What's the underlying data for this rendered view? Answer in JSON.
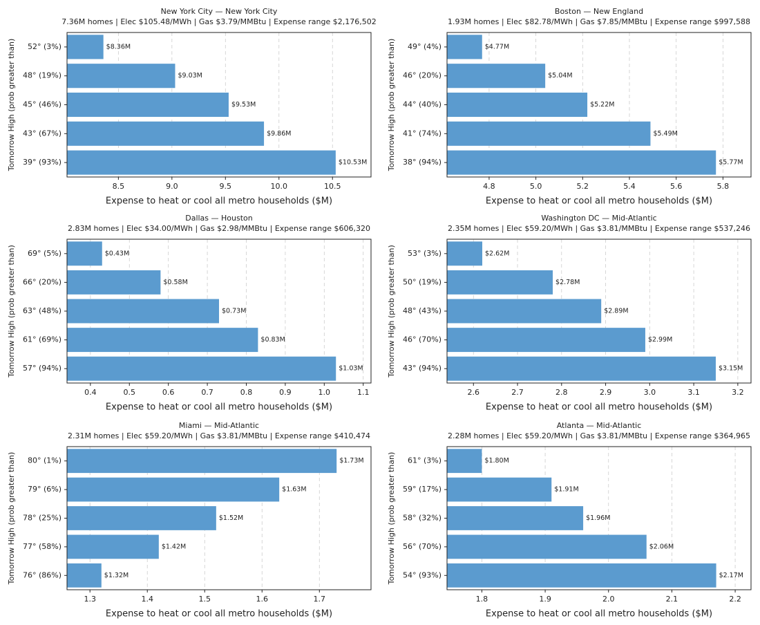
{
  "chart_data": [
    {
      "type": "bar",
      "orientation": "horizontal",
      "title": "New York City — New York City",
      "subtitle": "7.36M homes | Elec $105.48/MWh | Gas $3.79/MMBtu | Expense range $2,176,502",
      "categories": [
        "52° (3%)",
        "48° (19%)",
        "45° (46%)",
        "43° (67%)",
        "39° (93%)"
      ],
      "values": [
        8.36,
        9.03,
        9.53,
        9.86,
        10.53
      ],
      "value_labels": [
        "$8.36M",
        "$9.03M",
        "$9.53M",
        "$9.86M",
        "$10.53M"
      ],
      "xlim": [
        8.02,
        10.86
      ],
      "xticks": [
        8.5,
        {
          "value": 9.0,
          "label": "9.0"
        },
        9.5,
        {
          "value": 10.0,
          "label": "10.0"
        },
        10.5
      ],
      "xlabel": "Expense to heat or cool all metro households ($M)",
      "ylabel": "Tomorrow High (prob greater than)",
      "color": "#5b9bcf",
      "grid": true
    },
    {
      "type": "bar",
      "orientation": "horizontal",
      "title": "Boston — New England",
      "subtitle": "1.93M homes | Elec $82.78/MWh | Gas $7.85/MMBtu | Expense range $997,588",
      "categories": [
        "49° (4%)",
        "46° (20%)",
        "44° (40%)",
        "41° (74%)",
        "38° (94%)"
      ],
      "values": [
        4.77,
        5.04,
        5.22,
        5.49,
        5.77
      ],
      "value_labels": [
        "$4.77M",
        "$5.04M",
        "$5.22M",
        "$5.49M",
        "$5.77M"
      ],
      "xlim": [
        4.62,
        5.92
      ],
      "xticks": [
        4.8,
        {
          "value": 5.0,
          "label": "5.0"
        },
        5.2,
        5.4,
        5.6,
        5.8
      ],
      "xlabel": "Expense to heat or cool all metro households ($M)",
      "ylabel": "Tomorrow High (prob greater than)",
      "color": "#5b9bcf",
      "grid": true
    },
    {
      "type": "bar",
      "orientation": "horizontal",
      "title": "Dallas — Houston",
      "subtitle": "2.83M homes | Elec $34.00/MWh | Gas $2.98/MMBtu | Expense range $606,320",
      "categories": [
        "69° (5%)",
        "66° (20%)",
        "63° (48%)",
        "61° (69%)",
        "57° (94%)"
      ],
      "values": [
        0.43,
        0.58,
        0.73,
        0.83,
        1.03
      ],
      "value_labels": [
        "$0.43M",
        "$0.58M",
        "$0.73M",
        "$0.83M",
        "$1.03M"
      ],
      "xlim": [
        0.34,
        1.12
      ],
      "xticks": [
        0.4,
        0.5,
        0.6,
        0.7,
        0.8,
        0.9,
        {
          "value": 1.0,
          "label": "1.0"
        },
        1.1
      ],
      "xlabel": "Expense to heat or cool all metro households ($M)",
      "ylabel": "Tomorrow High (prob greater than)",
      "color": "#5b9bcf",
      "grid": true
    },
    {
      "type": "bar",
      "orientation": "horizontal",
      "title": "Washington DC — Mid-Atlantic",
      "subtitle": "2.35M homes | Elec $59.20/MWh | Gas $3.81/MMBtu | Expense range $537,246",
      "categories": [
        "53° (3%)",
        "50° (19%)",
        "48° (43%)",
        "46° (70%)",
        "43° (94%)"
      ],
      "values": [
        2.62,
        2.78,
        2.89,
        2.99,
        3.15
      ],
      "value_labels": [
        "$2.62M",
        "$2.78M",
        "$2.89M",
        "$2.99M",
        "$3.15M"
      ],
      "xlim": [
        2.54,
        3.23
      ],
      "xticks": [
        2.6,
        2.7,
        2.8,
        2.9,
        {
          "value": 3.0,
          "label": "3.0"
        },
        3.1,
        3.2
      ],
      "xlabel": "Expense to heat or cool all metro households ($M)",
      "ylabel": "Tomorrow High (prob greater than)",
      "color": "#5b9bcf",
      "grid": true
    },
    {
      "type": "bar",
      "orientation": "horizontal",
      "title": "Miami — Mid-Atlantic",
      "subtitle": "2.31M homes | Elec $59.20/MWh | Gas $3.81/MMBtu | Expense range $410,474",
      "categories": [
        "80° (1%)",
        "79° (6%)",
        "78° (25%)",
        "77° (58%)",
        "76° (86%)"
      ],
      "values": [
        1.73,
        1.63,
        1.52,
        1.42,
        1.32
      ],
      "value_labels": [
        "$1.73M",
        "$1.63M",
        "$1.52M",
        "$1.42M",
        "$1.32M"
      ],
      "xlim": [
        1.26,
        1.79
      ],
      "xticks": [
        1.3,
        1.4,
        1.5,
        1.6,
        1.7
      ],
      "xlabel": "Expense to heat or cool all metro households ($M)",
      "ylabel": "Tomorrow High (prob greater than)",
      "color": "#5b9bcf",
      "grid": true
    },
    {
      "type": "bar",
      "orientation": "horizontal",
      "title": "Atlanta — Mid-Atlantic",
      "subtitle": "2.28M homes | Elec $59.20/MWh | Gas $3.81/MMBtu | Expense range $364,965",
      "categories": [
        "61° (3%)",
        "59° (17%)",
        "58° (32%)",
        "56° (70%)",
        "54° (93%)"
      ],
      "values": [
        1.8,
        1.91,
        1.96,
        2.06,
        2.17
      ],
      "value_labels": [
        "$1.80M",
        "$1.91M",
        "$1.96M",
        "$2.06M",
        "$2.17M"
      ],
      "xlim": [
        1.745,
        2.225
      ],
      "xticks": [
        1.8,
        1.9,
        {
          "value": 2.0,
          "label": "2.0"
        },
        2.1,
        2.2
      ],
      "xlabel": "Expense to heat or cool all metro households ($M)",
      "ylabel": "Tomorrow High (prob greater than)",
      "color": "#5b9bcf",
      "grid": true
    }
  ]
}
